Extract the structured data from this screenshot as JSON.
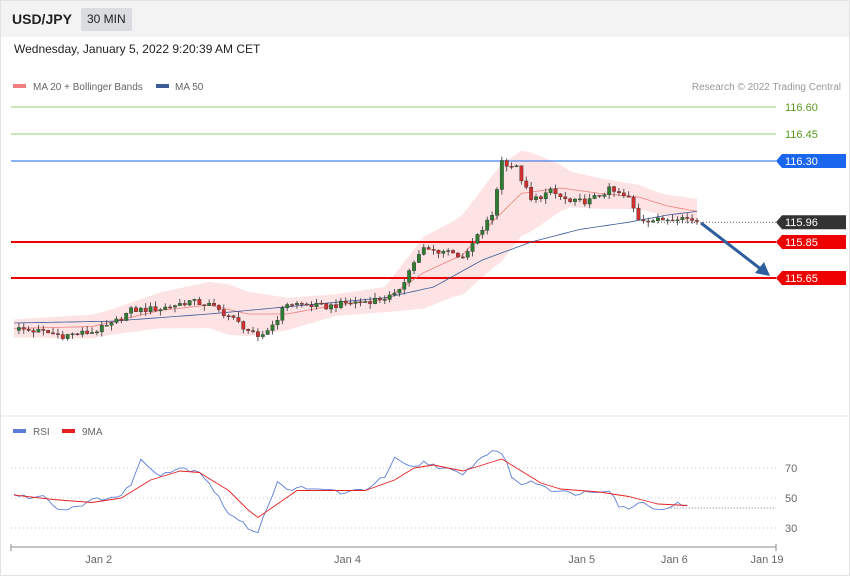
{
  "header": {
    "symbol": "USD/JPY",
    "timeframe": "30 MIN",
    "datetime": "Wednesday, January 5, 2022 9:20:39 AM CET"
  },
  "copyright": "Research © 2022 Trading Central",
  "colors": {
    "bull": "#2e7d32",
    "bear": "#d32f2f",
    "bb_fill": "#fde0e0",
    "ma20": "#f08080",
    "ma50": "#3a5a98",
    "resistance_green": "#9acd78",
    "support_red": "#ee0000",
    "blue_level": "#1a66ee",
    "rsi": "#5b7fd6",
    "rsi_ma": "#e62020",
    "forecast_arrow": "#2f5e9e",
    "current_tag": "#333333"
  },
  "chart_data": [
    {
      "type": "candlestick",
      "name": "price",
      "ylim": [
        115.35,
        116.67
      ],
      "legend": [
        {
          "label": "MA 20 + Bollinger Bands",
          "color": "#f08080"
        },
        {
          "label": "MA 50",
          "color": "#3a5a98"
        }
      ],
      "levels": [
        {
          "value": 116.6,
          "label": "116.60",
          "kind": "resistance"
        },
        {
          "value": 116.45,
          "label": "116.45",
          "kind": "resistance"
        },
        {
          "value": 116.3,
          "label": "116.30",
          "kind": "pivot"
        },
        {
          "value": 115.96,
          "label": "115.96",
          "kind": "current"
        },
        {
          "value": 115.85,
          "label": "115.85",
          "kind": "support"
        },
        {
          "value": 115.65,
          "label": "115.65",
          "kind": "support"
        }
      ],
      "price_anchors": [
        [
          0,
          115.37
        ],
        [
          6,
          115.35
        ],
        [
          10,
          115.33
        ],
        [
          16,
          115.35
        ],
        [
          20,
          115.39
        ],
        [
          24,
          115.47
        ],
        [
          30,
          115.48
        ],
        [
          36,
          115.52
        ],
        [
          40,
          115.5
        ],
        [
          44,
          115.44
        ],
        [
          48,
          115.36
        ],
        [
          50,
          115.31
        ],
        [
          53,
          115.39
        ],
        [
          56,
          115.51
        ],
        [
          60,
          115.5
        ],
        [
          64,
          115.49
        ],
        [
          68,
          115.51
        ],
        [
          72,
          115.52
        ],
        [
          76,
          115.54
        ],
        [
          78,
          115.55
        ],
        [
          80,
          115.64
        ],
        [
          82,
          115.74
        ],
        [
          84,
          115.81
        ],
        [
          86,
          115.8
        ],
        [
          90,
          115.8
        ],
        [
          92,
          115.75
        ],
        [
          95,
          115.88
        ],
        [
          98,
          116.0
        ],
        [
          100,
          116.3
        ],
        [
          103,
          116.26
        ],
        [
          106,
          116.08
        ],
        [
          110,
          116.13
        ],
        [
          114,
          116.07
        ],
        [
          118,
          116.08
        ],
        [
          122,
          116.14
        ],
        [
          126,
          116.09
        ],
        [
          128,
          115.98
        ],
        [
          132,
          115.97
        ],
        [
          136,
          115.99
        ],
        [
          140,
          115.97
        ]
      ],
      "ma50_anchors": [
        [
          0,
          115.4
        ],
        [
          20,
          115.41
        ],
        [
          40,
          115.45
        ],
        [
          60,
          115.5
        ],
        [
          76,
          115.54
        ],
        [
          86,
          115.6
        ],
        [
          96,
          115.75
        ],
        [
          106,
          115.85
        ],
        [
          116,
          115.92
        ],
        [
          126,
          115.96
        ],
        [
          134,
          116.0
        ],
        [
          140,
          116.02
        ]
      ],
      "ma20_anchors": [
        [
          0,
          115.37
        ],
        [
          16,
          115.38
        ],
        [
          30,
          115.47
        ],
        [
          40,
          115.5
        ],
        [
          48,
          115.45
        ],
        [
          56,
          115.45
        ],
        [
          66,
          115.5
        ],
        [
          76,
          115.53
        ],
        [
          84,
          115.68
        ],
        [
          92,
          115.78
        ],
        [
          98,
          115.96
        ],
        [
          104,
          116.12
        ],
        [
          112,
          116.15
        ],
        [
          120,
          116.12
        ],
        [
          128,
          116.1
        ],
        [
          134,
          116.05
        ],
        [
          140,
          116.02
        ]
      ],
      "bb_width_anchors": [
        [
          0,
          0.05
        ],
        [
          20,
          0.07
        ],
        [
          30,
          0.1
        ],
        [
          44,
          0.14
        ],
        [
          56,
          0.09
        ],
        [
          66,
          0.06
        ],
        [
          76,
          0.07
        ],
        [
          84,
          0.2
        ],
        [
          90,
          0.21
        ],
        [
          100,
          0.27
        ],
        [
          106,
          0.22
        ],
        [
          114,
          0.1
        ],
        [
          122,
          0.08
        ],
        [
          132,
          0.06
        ],
        [
          140,
          0.07
        ]
      ],
      "x_range": [
        0,
        140
      ],
      "x_ticks": [
        {
          "x": 19,
          "label": "Jan 2"
        },
        {
          "x": 70,
          "label": "Jan 4"
        },
        {
          "x": 118,
          "label": "Jan 5"
        },
        {
          "x": 137,
          "label": "Jan 6"
        },
        {
          "x": 151,
          "label": "Jan 19"
        }
      ],
      "forecast": {
        "from": [
          138,
          115.96
        ],
        "to": [
          151,
          115.66
        ]
      }
    },
    {
      "type": "line",
      "name": "rsi",
      "ylim": [
        20,
        80
      ],
      "y_ticks": [
        70,
        50,
        30
      ],
      "legend": [
        {
          "label": "RSI",
          "color": "#5b7fd6"
        },
        {
          "label": "9MA",
          "color": "#e62020"
        }
      ],
      "rsi_anchors": [
        [
          0,
          52
        ],
        [
          4,
          50
        ],
        [
          6,
          53
        ],
        [
          8,
          45
        ],
        [
          10,
          42
        ],
        [
          14,
          46
        ],
        [
          18,
          50
        ],
        [
          22,
          51
        ],
        [
          24,
          60
        ],
        [
          26,
          75
        ],
        [
          28,
          70
        ],
        [
          30,
          66
        ],
        [
          34,
          70
        ],
        [
          38,
          68
        ],
        [
          40,
          60
        ],
        [
          42,
          50
        ],
        [
          44,
          40
        ],
        [
          46,
          35
        ],
        [
          48,
          30
        ],
        [
          50,
          28
        ],
        [
          52,
          45
        ],
        [
          54,
          60
        ],
        [
          56,
          55
        ],
        [
          58,
          58
        ],
        [
          60,
          55
        ],
        [
          64,
          56
        ],
        [
          68,
          53
        ],
        [
          72,
          56
        ],
        [
          76,
          64
        ],
        [
          78,
          76
        ],
        [
          80,
          72
        ],
        [
          82,
          70
        ],
        [
          84,
          74
        ],
        [
          86,
          72
        ],
        [
          88,
          70
        ],
        [
          92,
          65
        ],
        [
          94,
          72
        ],
        [
          98,
          82
        ],
        [
          100,
          80
        ],
        [
          102,
          65
        ],
        [
          104,
          58
        ],
        [
          106,
          62
        ],
        [
          110,
          56
        ],
        [
          114,
          53
        ],
        [
          118,
          54
        ],
        [
          122,
          56
        ],
        [
          124,
          45
        ],
        [
          126,
          42
        ],
        [
          128,
          48
        ],
        [
          130,
          45
        ],
        [
          134,
          42
        ],
        [
          136,
          48
        ],
        [
          138,
          44
        ]
      ],
      "rsi_ma_anchors": [
        [
          0,
          52
        ],
        [
          8,
          49
        ],
        [
          16,
          47
        ],
        [
          22,
          50
        ],
        [
          28,
          62
        ],
        [
          34,
          68
        ],
        [
          38,
          67
        ],
        [
          44,
          55
        ],
        [
          48,
          42
        ],
        [
          50,
          37
        ],
        [
          54,
          46
        ],
        [
          58,
          55
        ],
        [
          64,
          55
        ],
        [
          72,
          55
        ],
        [
          78,
          62
        ],
        [
          82,
          70
        ],
        [
          86,
          72
        ],
        [
          92,
          68
        ],
        [
          98,
          74
        ],
        [
          100,
          76
        ],
        [
          104,
          68
        ],
        [
          108,
          60
        ],
        [
          112,
          56
        ],
        [
          120,
          54
        ],
        [
          126,
          51
        ],
        [
          132,
          46
        ],
        [
          138,
          45
        ]
      ],
      "last_label_hidden": true
    }
  ]
}
